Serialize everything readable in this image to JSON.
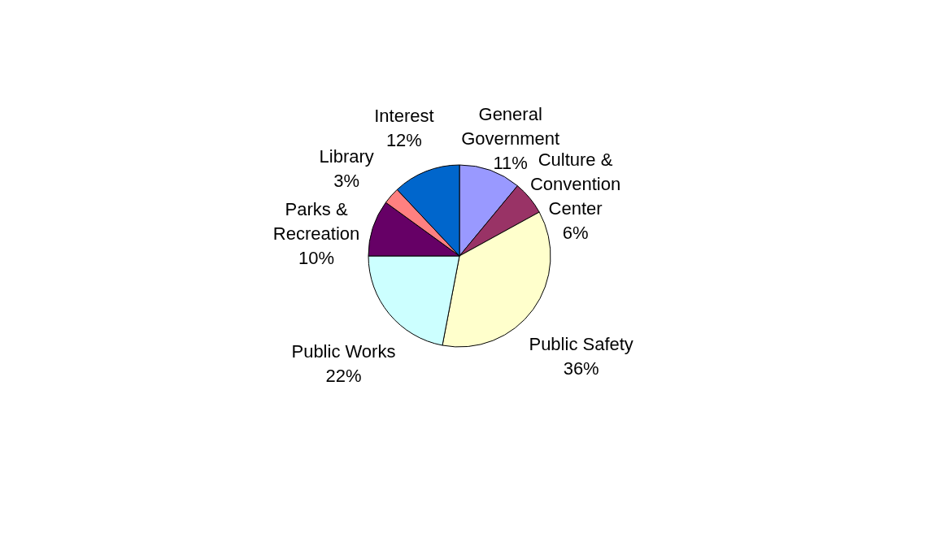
{
  "chart_data": {
    "type": "pie",
    "categories": [
      "General Government",
      "Culture & Convention Center",
      "Public Safety",
      "Public Works",
      "Parks & Recreation",
      "Library",
      "Interest"
    ],
    "values": [
      11,
      6,
      36,
      22,
      10,
      3,
      12
    ],
    "value_labels": [
      "11%",
      "6%",
      "36%",
      "22%",
      "10%",
      "3%",
      "12%"
    ],
    "colors": [
      "#9999ff",
      "#993366",
      "#ffffcc",
      "#ccffff",
      "#660066",
      "#ff8080",
      "#0066cc"
    ],
    "legend": false
  }
}
